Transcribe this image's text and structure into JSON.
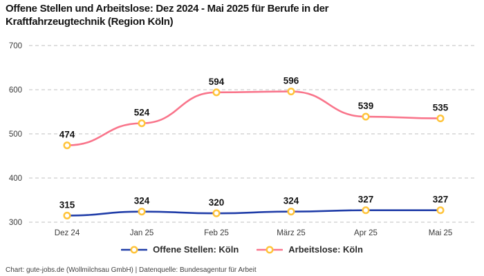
{
  "title": "Offene Stellen und Arbeitslose: Dez 2024 - Mai 2025 für Berufe in der Kraftfahrzeugtechnik (Region Köln)",
  "footer": {
    "text": "Chart: gute-jobs.de (Wollmilchsau GmbH) | Datenquelle: Bundesagentur für Arbeit"
  },
  "colors": {
    "background": "#ffffff",
    "grid": "#cccccc",
    "axis_text": "#3a3a3a",
    "data_label": "#111111",
    "marker_stroke": "#ffc43b",
    "marker_fill": "#ffffff",
    "legend_text": "#2b2b2b",
    "title_text": "#141414",
    "series_offene_stellen": "#203da8",
    "series_arbeitslose": "#f9758b"
  },
  "chart_data": {
    "type": "line",
    "title": "Offene Stellen und Arbeitslose: Dez 2024 - Mai 2025 für Berufe in der Kraftfahrzeugtechnik (Region Köln)",
    "categories": [
      "Dez 24",
      "Jan 25",
      "Feb 25",
      "März 25",
      "Apr 25",
      "Mai 25"
    ],
    "series": [
      {
        "name": "Offene Stellen: Köln",
        "color": "#203da8",
        "values": [
          315,
          324,
          320,
          324,
          327,
          327
        ]
      },
      {
        "name": "Arbeitslose: Köln",
        "color": "#f9758b",
        "values": [
          474,
          524,
          594,
          596,
          539,
          535
        ]
      }
    ],
    "yticks": [
      300,
      400,
      500,
      600,
      700
    ],
    "ylim": [
      300,
      700
    ],
    "grid": "horizontal-dashed",
    "legend_position": "bottom",
    "data_labels": true,
    "line_style": "smooth"
  }
}
